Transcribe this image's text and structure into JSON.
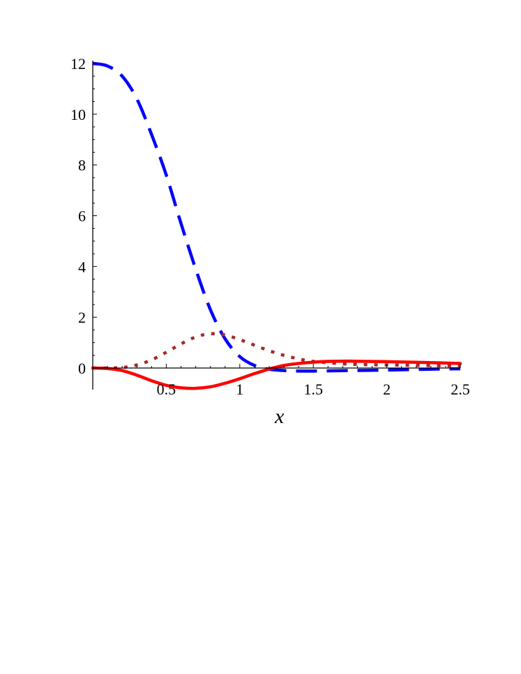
{
  "chart_data": {
    "type": "line",
    "title": "",
    "xlabel": "x",
    "ylabel": "",
    "xlim": [
      0,
      2.5
    ],
    "ylim": [
      -0.85,
      12
    ],
    "x_ticks": [
      0.5,
      1,
      1.5,
      2,
      2.5
    ],
    "x_tick_labels": [
      "0.5",
      "1",
      "1.5",
      "2",
      "2.5"
    ],
    "y_ticks": [
      0,
      2,
      4,
      6,
      8,
      10,
      12
    ],
    "y_tick_labels": [
      "0",
      "2",
      "4",
      "6",
      "8",
      "10",
      "12"
    ],
    "grid": false,
    "legend": "none",
    "series": [
      {
        "style": "dashed",
        "color": "#0000ff",
        "x": [
          0,
          0.1,
          0.2,
          0.3,
          0.4,
          0.5,
          0.6,
          0.7,
          0.8,
          0.9,
          1.0,
          1.1,
          1.2,
          1.3,
          1.4,
          1.5,
          1.75,
          2.0,
          2.25,
          2.5
        ],
        "y": [
          12.0,
          11.9,
          11.5,
          10.6,
          9.2,
          7.6,
          5.7,
          3.9,
          2.3,
          1.15,
          0.45,
          0.1,
          -0.05,
          -0.1,
          -0.12,
          -0.12,
          -0.1,
          -0.08,
          -0.05,
          -0.03
        ]
      },
      {
        "style": "dotted",
        "color": "#a52a2a",
        "x": [
          0,
          0.1,
          0.2,
          0.3,
          0.4,
          0.5,
          0.6,
          0.7,
          0.8,
          0.9,
          1.0,
          1.1,
          1.2,
          1.3,
          1.4,
          1.5,
          1.75,
          2.0,
          2.25,
          2.5
        ],
        "y": [
          0.0,
          0.0,
          0.02,
          0.12,
          0.32,
          0.62,
          0.95,
          1.22,
          1.35,
          1.3,
          1.12,
          0.9,
          0.68,
          0.5,
          0.36,
          0.26,
          0.15,
          0.12,
          0.1,
          0.08
        ]
      },
      {
        "style": "solid",
        "color": "#ff0000",
        "x": [
          0,
          0.1,
          0.2,
          0.3,
          0.4,
          0.5,
          0.6,
          0.7,
          0.8,
          0.9,
          1.0,
          1.1,
          1.2,
          1.3,
          1.4,
          1.5,
          1.6,
          1.75,
          2.0,
          2.25,
          2.5
        ],
        "y": [
          0.0,
          -0.02,
          -0.1,
          -0.28,
          -0.5,
          -0.68,
          -0.78,
          -0.8,
          -0.74,
          -0.6,
          -0.42,
          -0.22,
          -0.04,
          0.1,
          0.18,
          0.23,
          0.26,
          0.27,
          0.25,
          0.22,
          0.18
        ]
      }
    ]
  }
}
